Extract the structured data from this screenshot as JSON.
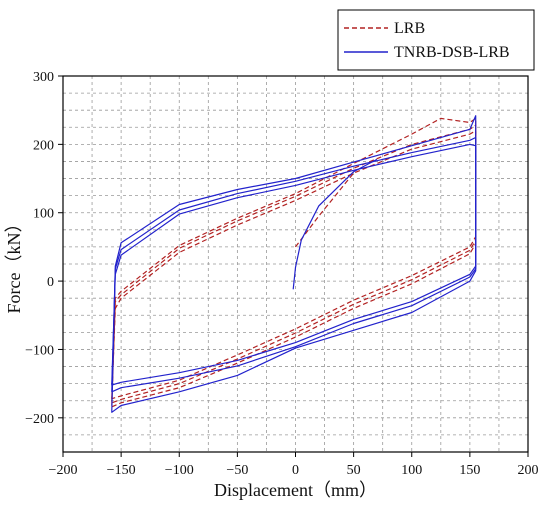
{
  "chart_data": {
    "type": "line",
    "xlabel": "Displacement（mm）",
    "ylabel": "Force（kN）",
    "xlim": [
      -200,
      200
    ],
    "ylim": [
      -250,
      300
    ],
    "xticks": [
      -200,
      -150,
      -100,
      -50,
      0,
      50,
      100,
      150,
      200
    ],
    "yticks": [
      -200,
      -100,
      0,
      100,
      200,
      300
    ],
    "grid": true,
    "legend_position": "top-right",
    "series": [
      {
        "name": "LRB",
        "style": "dashed",
        "color": "#b22222",
        "loops": [
          {
            "upper": [
              [
                -158,
                -170
              ],
              [
                -155,
                -40
              ],
              [
                -150,
                -25
              ],
              [
                -100,
                42
              ],
              [
                -50,
                82
              ],
              [
                0,
                118
              ],
              [
                50,
                158
              ],
              [
                100,
                193
              ],
              [
                150,
                215
              ],
              [
                155,
                220
              ]
            ],
            "lower": [
              [
                155,
                65
              ],
              [
                150,
                50
              ],
              [
                100,
                8
              ],
              [
                50,
                -28
              ],
              [
                0,
                -70
              ],
              [
                -50,
                -108
              ],
              [
                -100,
                -145
              ],
              [
                -150,
                -168
              ],
              [
                -158,
                -172
              ]
            ]
          },
          {
            "upper": [
              [
                -158,
                -176
              ],
              [
                -155,
                -30
              ],
              [
                -150,
                -20
              ],
              [
                -100,
                48
              ],
              [
                -50,
                88
              ],
              [
                0,
                124
              ],
              [
                50,
                165
              ],
              [
                100,
                200
              ],
              [
                150,
                222
              ],
              [
                155,
                228
              ]
            ],
            "lower": [
              [
                155,
                60
              ],
              [
                150,
                45
              ],
              [
                100,
                2
              ],
              [
                50,
                -34
              ],
              [
                0,
                -76
              ],
              [
                -50,
                -114
              ],
              [
                -100,
                -150
              ],
              [
                -150,
                -173
              ],
              [
                -158,
                -178
              ]
            ]
          },
          {
            "upper": [
              [
                -158,
                -182
              ],
              [
                -155,
                -25
              ],
              [
                -150,
                -15
              ],
              [
                -100,
                52
              ],
              [
                -50,
                92
              ],
              [
                0,
                128
              ],
              [
                50,
                172
              ],
              [
                100,
                215
              ],
              [
                125,
                238
              ],
              [
                150,
                232
              ],
              [
                155,
                238
              ]
            ],
            "lower": [
              [
                155,
                55
              ],
              [
                150,
                40
              ],
              [
                100,
                -4
              ],
              [
                50,
                -40
              ],
              [
                0,
                -82
              ],
              [
                -50,
                -120
              ],
              [
                -100,
                -156
              ],
              [
                -150,
                -178
              ],
              [
                -158,
                -184
              ]
            ]
          }
        ],
        "initial": [
          [
            0,
            50
          ],
          [
            20,
            95
          ],
          [
            50,
            158
          ]
        ]
      },
      {
        "name": "TNRB-DSB-LRB",
        "style": "solid",
        "color": "#2222cc",
        "loops": [
          {
            "upper": [
              [
                -158,
                -150
              ],
              [
                -155,
                10
              ],
              [
                -150,
                38
              ],
              [
                -100,
                98
              ],
              [
                -50,
                122
              ],
              [
                0,
                140
              ],
              [
                50,
                162
              ],
              [
                100,
                182
              ],
              [
                150,
                200
              ],
              [
                155,
                198
              ]
            ],
            "lower": [
              [
                155,
                22
              ],
              [
                150,
                10
              ],
              [
                100,
                -30
              ],
              [
                50,
                -56
              ],
              [
                0,
                -90
              ],
              [
                -50,
                -116
              ],
              [
                -100,
                -134
              ],
              [
                -150,
                -148
              ],
              [
                -158,
                -152
              ]
            ]
          },
          {
            "upper": [
              [
                -158,
                -160
              ],
              [
                -155,
                18
              ],
              [
                -150,
                46
              ],
              [
                -100,
                104
              ],
              [
                -50,
                128
              ],
              [
                0,
                146
              ],
              [
                50,
                168
              ],
              [
                100,
                188
              ],
              [
                150,
                206
              ],
              [
                155,
                210
              ]
            ],
            "lower": [
              [
                155,
                18
              ],
              [
                150,
                6
              ],
              [
                100,
                -36
              ],
              [
                50,
                -62
              ],
              [
                0,
                -96
              ],
              [
                -50,
                -124
              ],
              [
                -100,
                -142
              ],
              [
                -150,
                -156
              ],
              [
                -158,
                -162
              ]
            ]
          },
          {
            "upper": [
              [
                -158,
                -190
              ],
              [
                -155,
                22
              ],
              [
                -150,
                56
              ],
              [
                -100,
                112
              ],
              [
                -50,
                134
              ],
              [
                0,
                150
              ],
              [
                50,
                174
              ],
              [
                100,
                198
              ],
              [
                150,
                222
              ],
              [
                155,
                242
              ]
            ],
            "lower": [
              [
                155,
                15
              ],
              [
                150,
                0
              ],
              [
                100,
                -46
              ],
              [
                50,
                -72
              ],
              [
                0,
                -98
              ],
              [
                -50,
                -138
              ],
              [
                -100,
                -162
              ],
              [
                -150,
                -182
              ],
              [
                -158,
                -192
              ]
            ]
          }
        ],
        "initial": [
          [
            -2,
            -12
          ],
          [
            0,
            20
          ],
          [
            5,
            60
          ],
          [
            20,
            110
          ],
          [
            50,
            160
          ],
          [
            70,
            178
          ]
        ]
      }
    ]
  }
}
